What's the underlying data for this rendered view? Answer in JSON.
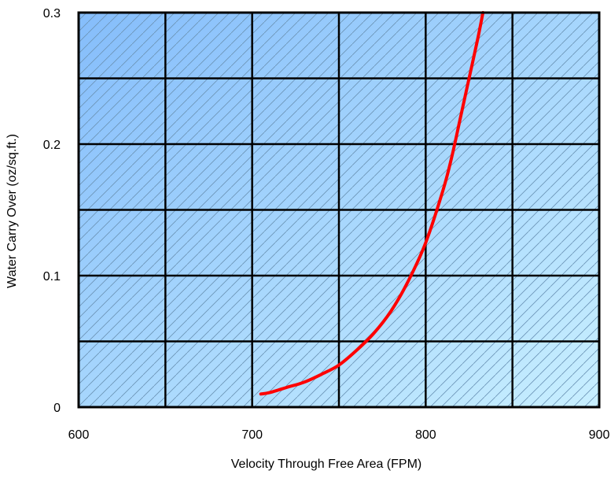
{
  "colors": {
    "background_gradient_start": "#85bdfb",
    "background_gradient_end": "#c8efff",
    "grid": "#000000",
    "hatch": "#6b93b5",
    "curve": "#ff0000"
  },
  "chart_data": {
    "type": "line",
    "title": "",
    "xlabel": "Velocity Through Free Area (FPM)",
    "ylabel": "Water Carry Over (oz/sq.ft.)",
    "xlim": [
      600,
      900
    ],
    "ylim": [
      0,
      0.3
    ],
    "x_ticks": [
      600,
      700,
      800,
      900
    ],
    "x_tick_labels": [
      "600",
      "700",
      "800",
      "900"
    ],
    "y_ticks": [
      0,
      0.1,
      0.2,
      0.3
    ],
    "y_tick_labels": [
      "0",
      "0.1",
      "0.2",
      "0.3"
    ],
    "x_gridlines": [
      600,
      650,
      700,
      750,
      800,
      850,
      900
    ],
    "y_gridlines": [
      0,
      0.05,
      0.1,
      0.15,
      0.2,
      0.25,
      0.3
    ],
    "grid": true,
    "legend": "none",
    "series": [
      {
        "x": [
          705,
          710,
          720,
          730,
          740,
          750,
          760,
          770,
          780,
          790,
          800,
          810,
          815,
          820,
          825,
          830,
          833
        ],
        "y": [
          0.01,
          0.011,
          0.015,
          0.019,
          0.025,
          0.032,
          0.043,
          0.056,
          0.073,
          0.096,
          0.125,
          0.165,
          0.19,
          0.22,
          0.25,
          0.28,
          0.3
        ]
      }
    ]
  }
}
